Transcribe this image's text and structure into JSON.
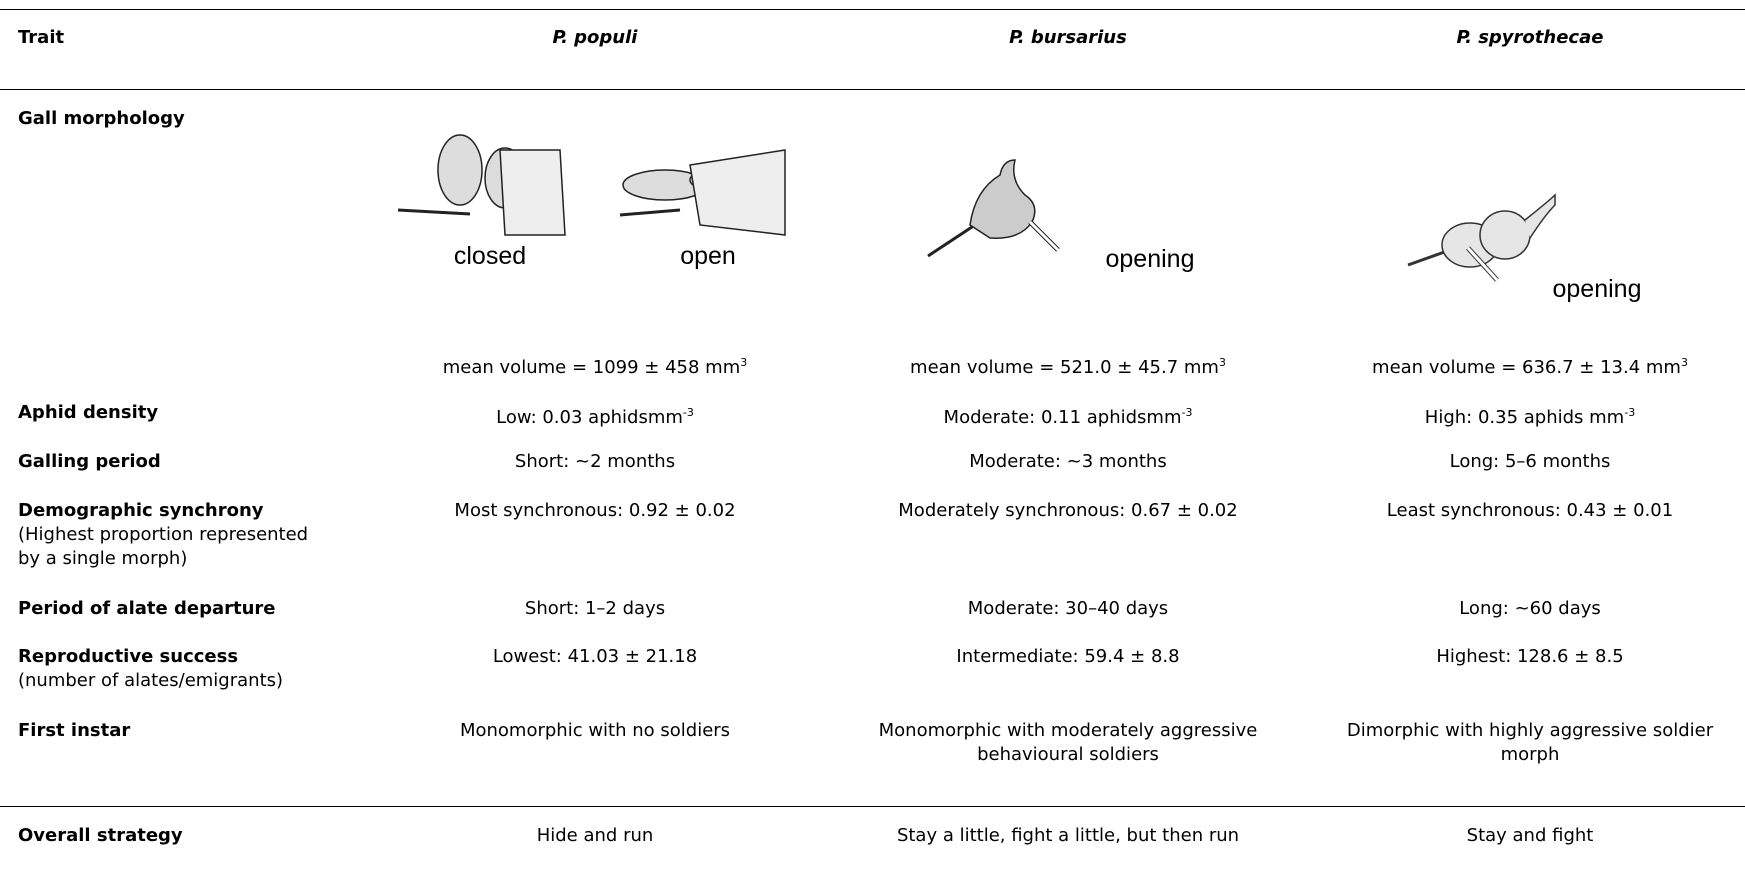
{
  "header": {
    "columns": [
      "Trait",
      "P. populi",
      "P. bursarius",
      "P. spyrothecae"
    ]
  },
  "gall_morphology": {
    "trait": "Gall morphology",
    "figures": [
      [
        "closed",
        "open"
      ],
      [
        "opening"
      ],
      [
        "opening"
      ]
    ],
    "volumes": [
      {
        "text": "mean volume = 1099 ± 458 mm",
        "sup": "3"
      },
      {
        "text": "mean volume = 521.0 ± 45.7 mm",
        "sup": "3"
      },
      {
        "text": "mean volume = 636.7 ± 13.4 mm",
        "sup": "3"
      }
    ]
  },
  "rows": [
    {
      "trait": "Aphid density",
      "values": [
        {
          "text": "Low: 0.03 aphidsmm",
          "sup": "-3"
        },
        {
          "text": "Moderate: 0.11 aphidsmm",
          "sup": "-3"
        },
        {
          "text": "High: 0.35 aphids mm",
          "sup": "-3"
        }
      ]
    },
    {
      "trait": "Galling period",
      "values": [
        "Short: ~2 months",
        "Moderate: ~3 months",
        "Long: 5–6 months"
      ]
    },
    {
      "trait": "Demographic synchrony",
      "note": "(Highest proportion represented by a single morph)",
      "values": [
        "Most synchronous: 0.92 ± 0.02",
        "Moderately synchronous: 0.67 ± 0.02",
        "Least synchronous: 0.43 ± 0.01"
      ]
    },
    {
      "trait": "Period of alate departure",
      "values": [
        "Short: 1–2 days",
        "Moderate: 30–40 days",
        "Long: ~60 days"
      ]
    },
    {
      "trait": "Reproductive success",
      "note": "(number of alates/emigrants)",
      "values": [
        "Lowest: 41.03 ± 21.18",
        "Intermediate: 59.4 ± 8.8",
        "Highest: 128.6 ± 8.5"
      ]
    },
    {
      "trait": "First instar",
      "values": [
        "Monomorphic with no soldiers",
        "Monomorphic with moderately aggressive behavioural soldiers",
        "Dimorphic with highly aggressive soldier morph"
      ]
    }
  ],
  "overall": {
    "trait": "Overall strategy",
    "values": [
      "Hide and run",
      "Stay a little, fight a little, but then run",
      "Stay and fight"
    ]
  }
}
